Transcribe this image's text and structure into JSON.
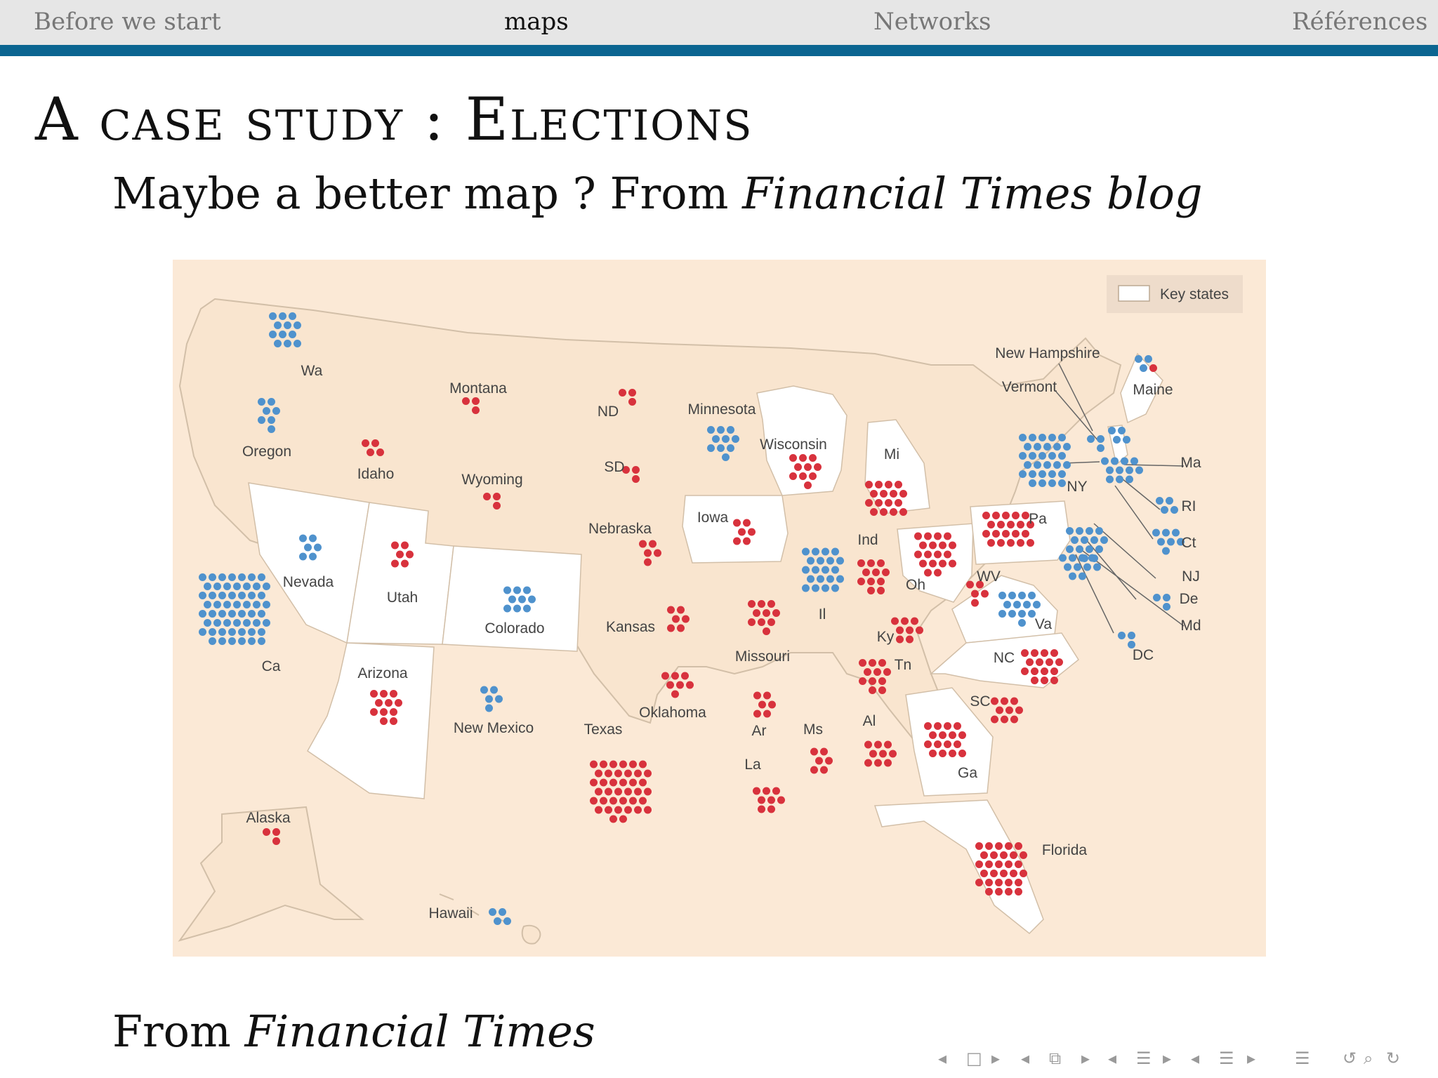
{
  "nav": {
    "sections": [
      "Before we start",
      "maps",
      "Networks",
      "Références"
    ],
    "active_index": 1
  },
  "slide": {
    "title": "A case study : Elections",
    "subtitle_plain": "Maybe a better map ? From ",
    "subtitle_italic": "Financial Times blog",
    "caption_plain": "From ",
    "caption_italic": "Financial Times"
  },
  "map": {
    "legend_label": "Key states",
    "colors": {
      "democrat": "#4f92cd",
      "republican": "#d8323d",
      "background": "#fbe9d6",
      "key_state": "#ffffff",
      "border": "#d2bfa8"
    },
    "states": [
      {
        "label": "Wa",
        "dem": 12,
        "rep": 0
      },
      {
        "label": "Oregon",
        "dem": 7,
        "rep": 0
      },
      {
        "label": "Ca",
        "dem": 55,
        "rep": 0
      },
      {
        "label": "Nevada",
        "dem": 6,
        "rep": 0
      },
      {
        "label": "Idaho",
        "dem": 0,
        "rep": 4
      },
      {
        "label": "Montana",
        "dem": 0,
        "rep": 3
      },
      {
        "label": "Wyoming",
        "dem": 0,
        "rep": 3
      },
      {
        "label": "Utah",
        "dem": 0,
        "rep": 6
      },
      {
        "label": "Arizona",
        "dem": 0,
        "rep": 11
      },
      {
        "label": "Colorado",
        "dem": 9,
        "rep": 0
      },
      {
        "label": "New Mexico",
        "dem": 5,
        "rep": 0
      },
      {
        "label": "ND",
        "dem": 0,
        "rep": 3
      },
      {
        "label": "SD",
        "dem": 0,
        "rep": 3
      },
      {
        "label": "Nebraska",
        "dem": 0,
        "rep": 5
      },
      {
        "label": "Kansas",
        "dem": 0,
        "rep": 6
      },
      {
        "label": "Oklahoma",
        "dem": 0,
        "rep": 7
      },
      {
        "label": "Texas",
        "dem": 0,
        "rep": 38
      },
      {
        "label": "Minnesota",
        "dem": 10,
        "rep": 0
      },
      {
        "label": "Iowa",
        "dem": 0,
        "rep": 6
      },
      {
        "label": "Missouri",
        "dem": 0,
        "rep": 10
      },
      {
        "label": "Ar",
        "dem": 0,
        "rep": 6
      },
      {
        "label": "La",
        "dem": 0,
        "rep": 8
      },
      {
        "label": "Wisconsin",
        "dem": 0,
        "rep": 10
      },
      {
        "label": "Il",
        "dem": 20,
        "rep": 0
      },
      {
        "label": "Mi",
        "dem": 0,
        "rep": 16
      },
      {
        "label": "Ind",
        "dem": 0,
        "rep": 11
      },
      {
        "label": "Oh",
        "dem": 0,
        "rep": 18
      },
      {
        "label": "Ky",
        "dem": 0,
        "rep": 8
      },
      {
        "label": "Tn",
        "dem": 0,
        "rep": 11
      },
      {
        "label": "Ms",
        "dem": 0,
        "rep": 6
      },
      {
        "label": "Al",
        "dem": 0,
        "rep": 9
      },
      {
        "label": "Ga",
        "dem": 0,
        "rep": 16
      },
      {
        "label": "Florida",
        "dem": 0,
        "rep": 29
      },
      {
        "label": "SC",
        "dem": 0,
        "rep": 9
      },
      {
        "label": "NC",
        "dem": 0,
        "rep": 15
      },
      {
        "label": "Va",
        "dem": 13,
        "rep": 0
      },
      {
        "label": "WV",
        "dem": 0,
        "rep": 5
      },
      {
        "label": "Pa",
        "dem": 0,
        "rep": 20
      },
      {
        "label": "NY",
        "dem": 29,
        "rep": 0
      },
      {
        "label": "Vermont",
        "dem": 3,
        "rep": 0
      },
      {
        "label": "New Hampshire",
        "dem": 4,
        "rep": 0
      },
      {
        "label": "Maine",
        "dem": 3,
        "rep": 1
      },
      {
        "label": "Ma",
        "dem": 11,
        "rep": 0
      },
      {
        "label": "RI",
        "dem": 4,
        "rep": 0
      },
      {
        "label": "Ct",
        "dem": 7,
        "rep": 0
      },
      {
        "label": "NJ",
        "dem": 14,
        "rep": 0
      },
      {
        "label": "De",
        "dem": 3,
        "rep": 0
      },
      {
        "label": "Md",
        "dem": 10,
        "rep": 0
      },
      {
        "label": "DC",
        "dem": 3,
        "rep": 0
      },
      {
        "label": "Alaska",
        "dem": 0,
        "rep": 3
      },
      {
        "label": "Hawaii",
        "dem": 4,
        "rep": 0
      }
    ]
  },
  "controls": {
    "icons": [
      "prev-frame-icon",
      "frame-icon",
      "next-frame-icon",
      "prev-subsection-icon",
      "subsection-icon",
      "next-subsection-icon",
      "prev-section-icon",
      "section-icon",
      "next-section-icon",
      "prev-page-icon",
      "page-icon",
      "next-page-icon",
      "toc-icon",
      "back-icon",
      "search-icon",
      "forward-icon"
    ]
  }
}
